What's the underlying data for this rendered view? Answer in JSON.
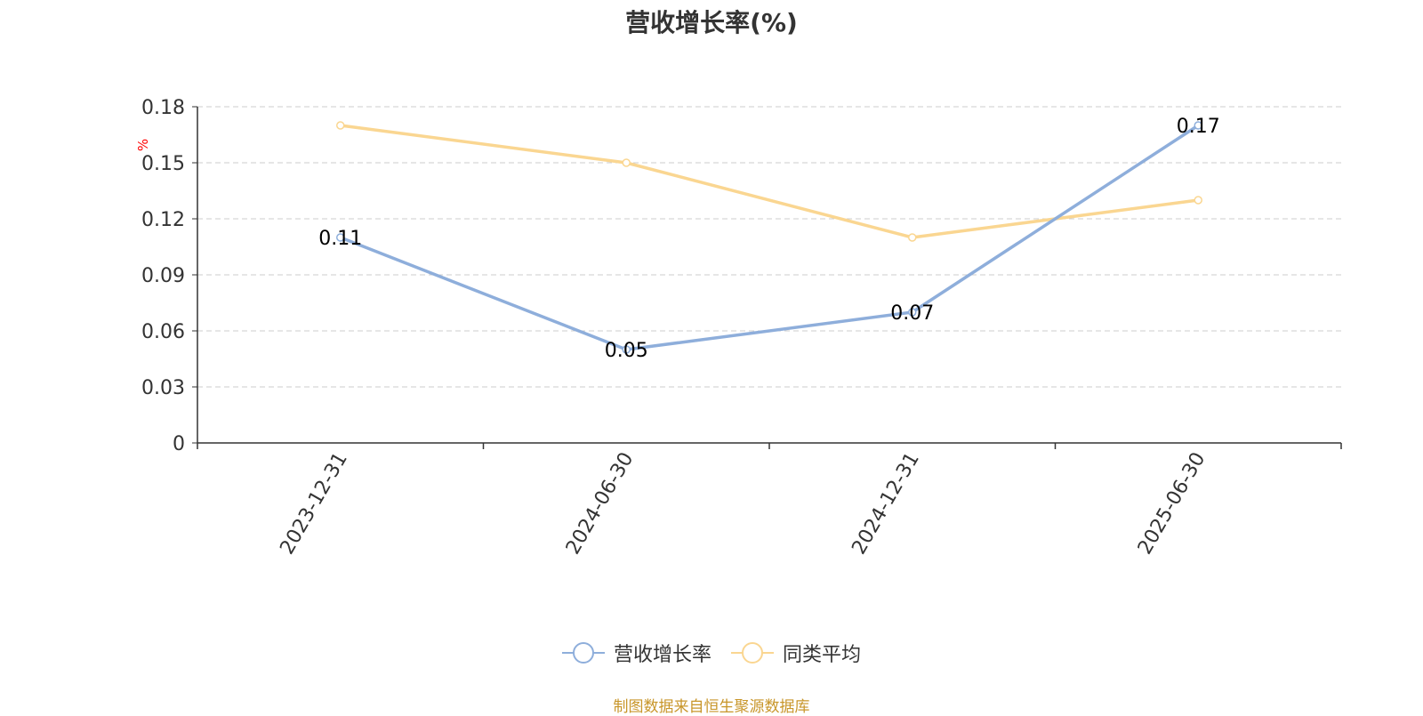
{
  "title": "营收增长率(%)",
  "y_unit_label": "%",
  "source_note": "制图数据来自恒生聚源数据库",
  "colors": {
    "series_1": "#8eaedb",
    "series_2": "#fad691",
    "axis": "#333333",
    "grid": "#cccccc",
    "unit_label": "#ff0000",
    "source_note": "#c8962a"
  },
  "chart_data": {
    "type": "line",
    "title": "营收增长率(%)",
    "ylabel": "%",
    "xlabel": "",
    "categories": [
      "2023-12-31",
      "2024-06-30",
      "2024-12-31",
      "2025-06-30"
    ],
    "ylim": [
      0,
      0.18
    ],
    "yticks": [
      "0",
      "0.03",
      "0.06",
      "0.09",
      "0.12",
      "0.15",
      "0.18"
    ],
    "grid": true,
    "legend_position": "bottom-center",
    "series": [
      {
        "name": "营收增长率",
        "values": [
          0.11,
          0.05,
          0.07,
          0.17
        ],
        "data_labels": [
          "0.11",
          "0.05",
          "0.07",
          "0.17"
        ]
      },
      {
        "name": "同类平均",
        "values": [
          0.17,
          0.15,
          0.11,
          0.13
        ]
      }
    ]
  }
}
